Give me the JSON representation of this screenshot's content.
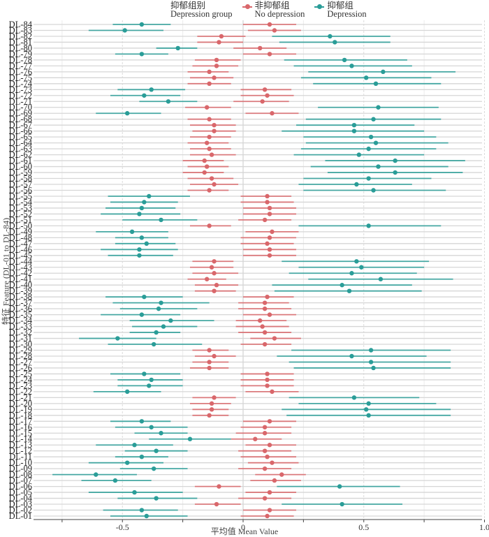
{
  "chart_data": {
    "type": "forest",
    "title": "",
    "xlabel": "平均值  Mean Value",
    "ylabel": "特征 Feature (DL-01 to DL-84)",
    "xlim": [
      -1.0,
      1.0
    ],
    "x_ticks": [
      -0.5,
      0,
      0.5,
      1.0
    ],
    "x_tick_labels": [
      "-0.5",
      "0",
      "0.5",
      "1.0"
    ],
    "minor_gridlines": [
      -0.75,
      -0.25,
      0.25,
      0.75
    ],
    "grid": true,
    "legend": {
      "position": "top",
      "title_zh": "抑郁组别",
      "title_en": "Depression group",
      "entries": [
        {
          "key": "no_dep",
          "label_zh": "非抑郁组",
          "label_en": "No depression",
          "color": "#d9676b"
        },
        {
          "key": "dep",
          "label_zh": "抑郁组",
          "label_en": "Depression",
          "color": "#2a9d98"
        }
      ]
    },
    "categories": [
      "DL-84",
      "DL-83",
      "DL-82",
      "DL-81",
      "DL-80",
      "DL-79",
      "DL-78",
      "DL-77",
      "DL-76",
      "DL-75",
      "DL-74",
      "DL-73",
      "DL-72",
      "DL-71",
      "DL-70",
      "DL-69",
      "DL-68",
      "DL-67",
      "DL-66",
      "DL-65",
      "DL-64",
      "DL-63",
      "DL-62",
      "DL-61",
      "DL-60",
      "DL-59",
      "DL-58",
      "DL-57",
      "DL-56",
      "DL-55",
      "DL-54",
      "DL-53",
      "DL-52",
      "DL-51",
      "DL-50",
      "DL-49",
      "DL-48",
      "DL-47",
      "DL-46",
      "DL-45",
      "DL-44",
      "DL-43",
      "DL-42",
      "DL-41",
      "DL-40",
      "DL-39",
      "DL-38",
      "DL-37",
      "DL-36",
      "DL-35",
      "DL-34",
      "DL-33",
      "DL-32",
      "DL-31",
      "DL-30",
      "DL-29",
      "DL-28",
      "DL-27",
      "DL-26",
      "DL-25",
      "DL-24",
      "DL-23",
      "DL-22",
      "DL-21",
      "DL-20",
      "DL-19",
      "DL-18",
      "DL-17",
      "DL-16",
      "DL-15",
      "DL-14",
      "DL-13",
      "DL-12",
      "DL-11",
      "DL-10",
      "DL-09",
      "DL-08",
      "DL-07",
      "DL-06",
      "DL-05",
      "DL-04",
      "DL-03",
      "DL-02",
      "DL-01"
    ],
    "series": [
      {
        "name": "No depression",
        "key": "no_dep",
        "color": "#d9676b",
        "mean": [
          0.11,
          0.13,
          -0.09,
          -0.1,
          0.07,
          0.11,
          -0.11,
          -0.11,
          -0.14,
          -0.12,
          -0.14,
          0.09,
          0.1,
          0.08,
          -0.15,
          0.12,
          -0.14,
          -0.12,
          -0.12,
          -0.14,
          -0.15,
          -0.14,
          -0.13,
          -0.16,
          -0.15,
          -0.16,
          -0.13,
          -0.12,
          -0.14,
          0.1,
          0.1,
          0.11,
          0.11,
          0.09,
          -0.14,
          0.12,
          0.11,
          0.1,
          0.11,
          0.11,
          -0.12,
          -0.13,
          -0.12,
          -0.15,
          -0.11,
          -0.12,
          0.1,
          0.09,
          0.09,
          0.11,
          0.07,
          0.08,
          0.09,
          0.13,
          0.09,
          -0.14,
          -0.12,
          -0.14,
          -0.14,
          0.1,
          0.1,
          0.1,
          0.12,
          -0.12,
          -0.13,
          -0.13,
          -0.14,
          0.11,
          0.09,
          0.09,
          0.05,
          0.11,
          0.09,
          0.1,
          0.12,
          0.09,
          0.16,
          0.13,
          -0.1,
          0.11,
          0.09,
          -0.11,
          0.11,
          0.1
        ],
        "lower": [
          0.0,
          0.02,
          -0.19,
          -0.19,
          -0.04,
          0.0,
          -0.2,
          -0.21,
          -0.23,
          -0.22,
          -0.23,
          -0.01,
          -0.01,
          -0.04,
          -0.24,
          0.01,
          -0.23,
          -0.22,
          -0.21,
          -0.22,
          -0.23,
          -0.22,
          -0.22,
          -0.25,
          -0.23,
          -0.25,
          -0.23,
          -0.22,
          -0.23,
          -0.01,
          -0.01,
          0.0,
          0.0,
          -0.02,
          -0.22,
          0.01,
          -0.01,
          -0.01,
          0.0,
          0.0,
          -0.21,
          -0.22,
          -0.21,
          -0.23,
          -0.2,
          -0.2,
          0.0,
          -0.02,
          -0.02,
          0.0,
          -0.03,
          -0.03,
          -0.02,
          0.03,
          -0.01,
          -0.21,
          -0.2,
          -0.21,
          -0.22,
          -0.01,
          -0.01,
          -0.01,
          0.01,
          -0.21,
          -0.22,
          -0.21,
          -0.21,
          0.0,
          -0.01,
          -0.03,
          -0.05,
          0.01,
          -0.02,
          -0.01,
          0.02,
          -0.02,
          0.05,
          0.03,
          -0.2,
          0.01,
          -0.02,
          -0.2,
          0.0,
          -0.01
        ],
        "upper": [
          0.22,
          0.24,
          0.01,
          0.0,
          0.18,
          0.22,
          -0.01,
          -0.02,
          -0.06,
          -0.04,
          -0.05,
          0.2,
          0.21,
          0.19,
          -0.05,
          0.23,
          -0.05,
          -0.03,
          -0.03,
          -0.05,
          -0.06,
          -0.05,
          -0.03,
          -0.08,
          -0.06,
          -0.08,
          -0.04,
          -0.02,
          -0.06,
          0.2,
          0.21,
          0.22,
          0.22,
          0.2,
          -0.05,
          0.23,
          0.22,
          0.21,
          0.22,
          0.22,
          -0.04,
          -0.04,
          -0.02,
          -0.07,
          -0.02,
          -0.03,
          0.21,
          0.19,
          0.2,
          0.22,
          0.18,
          0.19,
          0.2,
          0.24,
          0.2,
          -0.06,
          -0.03,
          -0.06,
          -0.06,
          0.21,
          0.21,
          0.21,
          0.23,
          -0.03,
          -0.05,
          -0.06,
          -0.06,
          0.22,
          0.2,
          0.2,
          0.16,
          0.22,
          0.2,
          0.22,
          0.23,
          0.2,
          0.26,
          0.24,
          -0.01,
          0.22,
          0.2,
          -0.01,
          0.22,
          0.21
        ]
      },
      {
        "name": "Depression",
        "key": "dep",
        "color": "#2a9d98",
        "mean": [
          -0.42,
          -0.49,
          0.36,
          0.38,
          -0.27,
          -0.42,
          0.42,
          0.45,
          0.58,
          0.51,
          0.55,
          -0.38,
          -0.41,
          -0.31,
          0.56,
          -0.48,
          0.54,
          0.46,
          0.46,
          0.53,
          0.55,
          0.52,
          0.48,
          0.63,
          0.56,
          0.63,
          0.52,
          0.47,
          0.54,
          -0.39,
          -0.41,
          -0.42,
          -0.43,
          -0.34,
          0.52,
          -0.46,
          -0.42,
          -0.4,
          -0.43,
          -0.43,
          0.47,
          0.49,
          0.45,
          0.57,
          0.41,
          0.44,
          -0.41,
          -0.34,
          -0.35,
          -0.42,
          -0.3,
          -0.33,
          -0.36,
          -0.52,
          -0.37,
          0.53,
          0.45,
          0.53,
          0.54,
          -0.41,
          -0.38,
          -0.39,
          -0.48,
          0.46,
          0.52,
          0.51,
          0.52,
          -0.42,
          -0.38,
          -0.34,
          -0.22,
          -0.45,
          -0.36,
          -0.42,
          -0.48,
          -0.37,
          -0.61,
          -0.53,
          0.4,
          -0.45,
          -0.36,
          0.41,
          -0.42,
          -0.4
        ],
        "lower": [
          -0.54,
          -0.64,
          0.12,
          0.15,
          -0.36,
          -0.53,
          0.17,
          0.21,
          0.27,
          0.24,
          0.29,
          -0.52,
          -0.55,
          -0.43,
          0.31,
          -0.61,
          0.26,
          0.22,
          0.16,
          0.25,
          0.26,
          0.24,
          0.21,
          0.34,
          0.28,
          0.35,
          0.25,
          0.23,
          0.25,
          -0.56,
          -0.55,
          -0.57,
          -0.59,
          -0.5,
          0.23,
          -0.61,
          -0.53,
          -0.53,
          -0.59,
          -0.56,
          0.16,
          0.23,
          0.19,
          0.27,
          0.12,
          0.13,
          -0.57,
          -0.54,
          -0.51,
          -0.59,
          -0.47,
          -0.46,
          -0.47,
          -0.68,
          -0.56,
          0.2,
          0.14,
          0.19,
          0.21,
          -0.55,
          -0.52,
          -0.52,
          -0.62,
          0.19,
          0.23,
          0.16,
          0.18,
          -0.55,
          -0.53,
          -0.45,
          -0.39,
          -0.61,
          -0.49,
          -0.53,
          -0.64,
          -0.51,
          -0.79,
          -0.67,
          0.14,
          -0.64,
          -0.52,
          0.16,
          -0.58,
          -0.55
        ],
        "upper": [
          -0.3,
          -0.33,
          0.61,
          0.61,
          -0.19,
          -0.31,
          0.68,
          0.7,
          0.88,
          0.78,
          0.82,
          -0.24,
          -0.26,
          -0.19,
          0.81,
          -0.34,
          0.82,
          0.71,
          0.75,
          0.8,
          0.85,
          0.8,
          0.75,
          0.92,
          0.85,
          0.91,
          0.78,
          0.7,
          0.84,
          -0.22,
          -0.27,
          -0.28,
          -0.26,
          -0.19,
          0.82,
          -0.31,
          -0.31,
          -0.28,
          -0.27,
          -0.29,
          0.77,
          0.75,
          0.72,
          0.87,
          0.7,
          0.74,
          -0.25,
          -0.14,
          -0.19,
          -0.26,
          -0.12,
          -0.19,
          -0.26,
          -0.36,
          -0.17,
          0.86,
          0.76,
          0.86,
          0.86,
          -0.26,
          -0.25,
          -0.25,
          -0.34,
          0.73,
          0.8,
          0.86,
          0.86,
          -0.3,
          -0.23,
          -0.23,
          -0.05,
          -0.29,
          -0.23,
          -0.31,
          -0.33,
          -0.23,
          -0.44,
          -0.38,
          0.65,
          -0.25,
          -0.19,
          0.66,
          -0.27,
          -0.23
        ]
      }
    ]
  }
}
